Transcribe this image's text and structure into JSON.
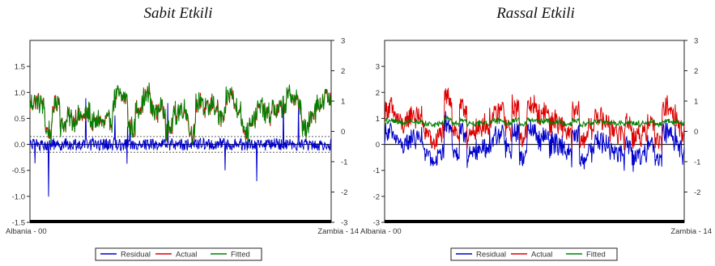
{
  "chart_data": [
    {
      "type": "line",
      "title": "Sabit Etkili",
      "x_start_label": "Albania - 00",
      "x_end_label": "Zambia - 14",
      "n_obs": 600,
      "left_axis": {
        "ylim": [
          -1.5,
          2.0
        ],
        "ticks": [
          "-1.5",
          "-1.0",
          "-0.5",
          "0.0",
          "0.5",
          "1.0",
          "1.5"
        ]
      },
      "right_axis": {
        "ylim": [
          -3.0,
          3.0
        ],
        "ticks": [
          "-3",
          "-2",
          "-1",
          "0",
          "1",
          "2",
          "3"
        ]
      },
      "residual_band": 0.15,
      "series": [
        {
          "name": "Residual",
          "axis": "left",
          "color": "#0000cc",
          "level": 0.0,
          "amplitude": 0.12
        },
        {
          "name": "Actual",
          "axis": "right",
          "color": "#dd0000",
          "level": 0.6,
          "amplitude": 0.7
        },
        {
          "name": "Fitted",
          "axis": "right",
          "color": "#008000",
          "level": 0.6,
          "amplitude": 0.7
        }
      ],
      "legend": [
        "Residual",
        "Actual",
        "Fitted"
      ]
    },
    {
      "type": "line",
      "title": "Rassal Etkili",
      "x_start_label": "Albania - 00",
      "x_end_label": "Zambia - 14",
      "n_obs": 600,
      "left_axis": {
        "ylim": [
          -3.0,
          4.0
        ],
        "ticks": [
          "-3",
          "-2",
          "-1",
          "0",
          "1",
          "2",
          "3"
        ]
      },
      "right_axis": {
        "ylim": [
          -3.0,
          3.0
        ],
        "ticks": [
          "-2",
          "-1",
          "0",
          "1",
          "2",
          "3"
        ]
      },
      "series": [
        {
          "name": "Residual",
          "axis": "left",
          "color": "#0000cc",
          "level": 0.0,
          "amplitude": 0.7
        },
        {
          "name": "Actual",
          "axis": "right",
          "color": "#dd0000",
          "level": 0.3,
          "amplitude": 0.8
        },
        {
          "name": "Fitted",
          "axis": "right",
          "color": "#008000",
          "level": 0.3,
          "amplitude": 0.15
        }
      ],
      "legend": [
        "Residual",
        "Actual",
        "Fitted"
      ]
    }
  ]
}
